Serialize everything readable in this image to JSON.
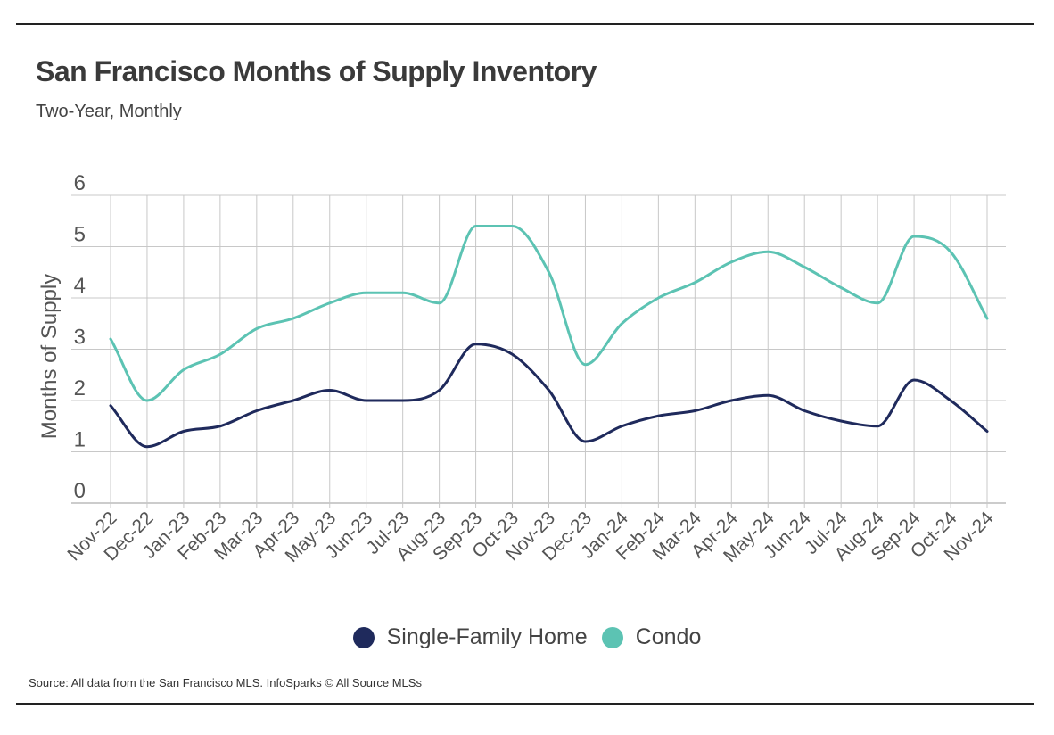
{
  "header": {
    "title": "San Francisco Months of Supply Inventory",
    "subtitle": "Two-Year, Monthly"
  },
  "footer": {
    "source": "Source:  All data from the San Francisco MLS. InfoSparks © All Source MLSs"
  },
  "chart_data": {
    "type": "line",
    "title": "San Francisco Months of Supply Inventory",
    "subtitle": "Two-Year, Monthly",
    "xlabel": "",
    "ylabel": "Months of Supply",
    "ylim": [
      0,
      6
    ],
    "yticks": [
      0,
      1,
      2,
      3,
      4,
      5,
      6
    ],
    "grid": true,
    "legend_position": "bottom",
    "categories": [
      "Nov-22",
      "Dec-22",
      "Jan-23",
      "Feb-23",
      "Mar-23",
      "Apr-23",
      "May-23",
      "Jun-23",
      "Jul-23",
      "Aug-23",
      "Sep-23",
      "Oct-23",
      "Nov-23",
      "Dec-23",
      "Jan-24",
      "Feb-24",
      "Mar-24",
      "Apr-24",
      "May-24",
      "Jun-24",
      "Jul-24",
      "Aug-24",
      "Sep-24",
      "Oct-24",
      "Nov-24"
    ],
    "series": [
      {
        "name": "Single-Family Home",
        "color": "#1f2a5c",
        "values": [
          1.9,
          1.1,
          1.4,
          1.5,
          1.8,
          2.0,
          2.2,
          2.0,
          2.0,
          2.2,
          3.1,
          2.9,
          2.2,
          1.2,
          1.5,
          1.7,
          1.8,
          2.0,
          2.1,
          1.8,
          1.6,
          1.5,
          2.4,
          2.0,
          1.4
        ]
      },
      {
        "name": "Condo",
        "color": "#5cc3b3",
        "values": [
          3.2,
          2.0,
          2.6,
          2.9,
          3.4,
          3.6,
          3.9,
          4.1,
          4.1,
          3.9,
          5.4,
          5.4,
          4.5,
          2.7,
          3.5,
          4.0,
          4.3,
          4.7,
          4.9,
          4.6,
          4.2,
          3.9,
          5.2,
          4.9,
          3.6
        ]
      }
    ]
  }
}
